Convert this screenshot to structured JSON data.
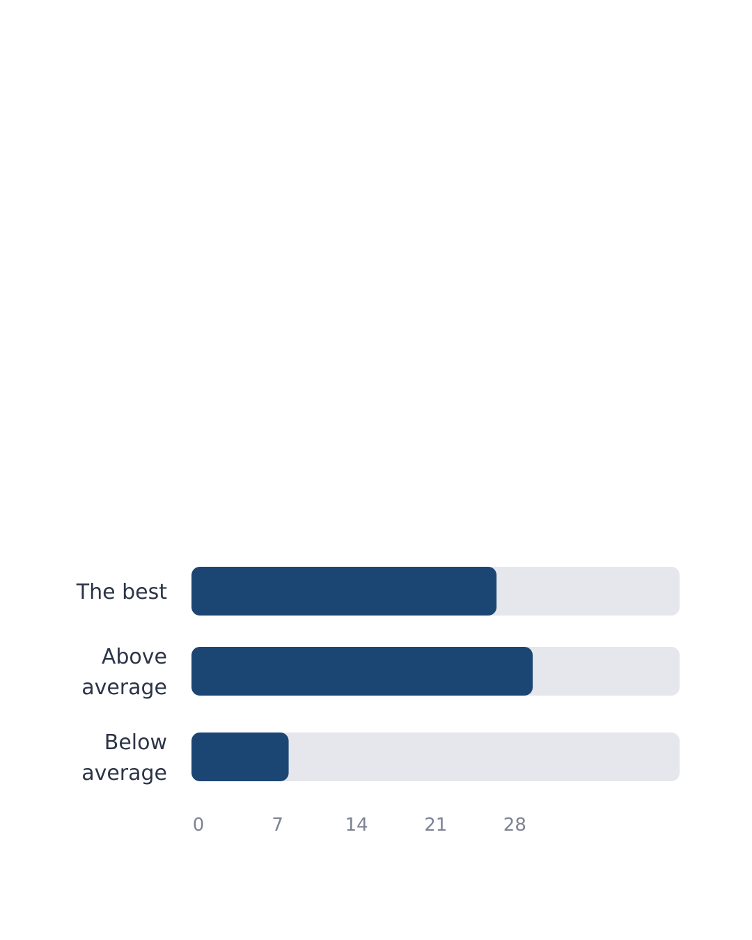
{
  "colors": {
    "bar": "#1b4674",
    "track": "#e5e7ec",
    "label": "#2c3447",
    "tick": "#7d8393"
  },
  "chart_data": {
    "type": "bar",
    "orientation": "horizontal",
    "categories": [
      "The best",
      "Above average",
      "Below average"
    ],
    "category_lines": [
      [
        "The best"
      ],
      [
        "Above",
        "average"
      ],
      [
        "Below",
        "average"
      ]
    ],
    "values": [
      27,
      30.2,
      8.6
    ],
    "xlim": [
      0,
      43.2
    ],
    "xticks": [
      0,
      7,
      14,
      21,
      28
    ],
    "title": "",
    "xlabel": "",
    "ylabel": "",
    "grid": false,
    "legend": "none"
  }
}
